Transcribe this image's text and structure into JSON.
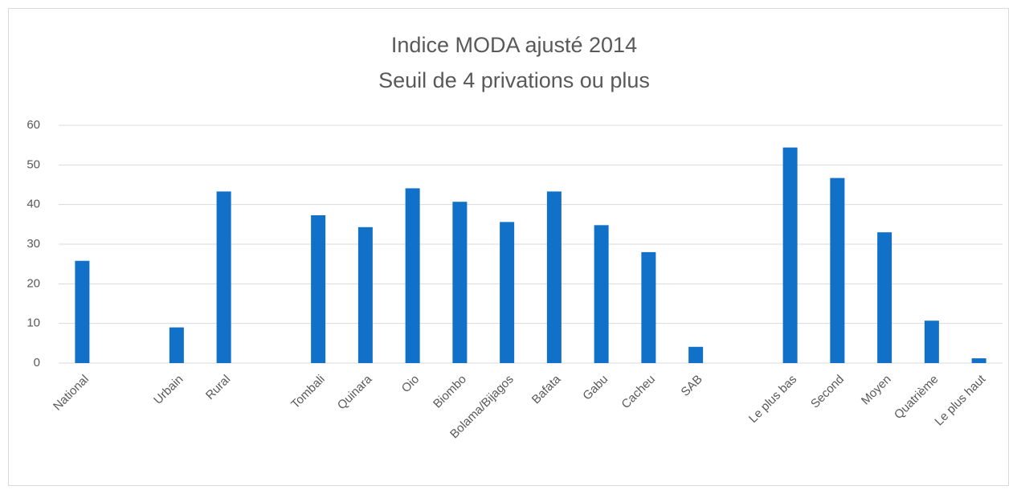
{
  "chart_data": {
    "type": "bar",
    "title": "Indice MODA ajusté 2014",
    "subtitle": "Seuil de 4 privations ou plus",
    "categories": [
      "National",
      null,
      "Urbain",
      "Rural",
      null,
      "Tombali",
      "Quinara",
      "Oio",
      "Biombo",
      "Bolama/Bijagos",
      "Bafata",
      "Gabu",
      "Cacheu",
      "SAB",
      null,
      "Le plus bas",
      "Second",
      "Moyen",
      "Quatrième",
      "Le plus haut"
    ],
    "values": [
      25.8,
      null,
      9,
      43.3,
      null,
      37.3,
      34.3,
      44.1,
      40.7,
      35.6,
      43.3,
      34.8,
      28,
      4.1,
      null,
      54.4,
      46.7,
      33,
      10.7,
      1.2
    ],
    "color": "#1170c8",
    "ylim": [
      0,
      60
    ],
    "yticks": [
      0,
      10,
      20,
      30,
      40,
      50,
      60
    ],
    "grid": true
  }
}
